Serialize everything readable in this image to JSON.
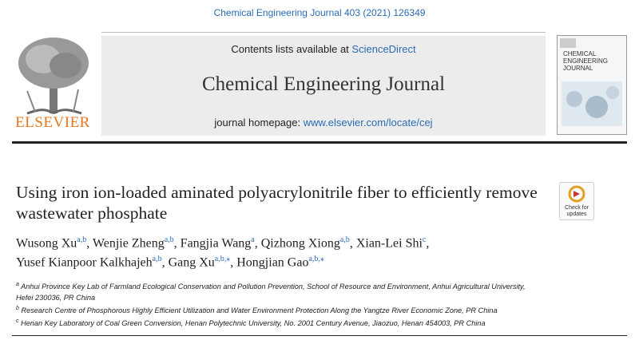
{
  "citation": "Chemical Engineering Journal 403 (2021) 126349",
  "masthead": {
    "contents_prefix": "Contents lists available at",
    "contents_link": "ScienceDirect",
    "journal": "Chemical Engineering Journal",
    "homepage_prefix": "journal homepage:",
    "homepage_link": "www.elsevier.com/locate/cej",
    "publisher": "ELSEVIER",
    "cover_title": [
      "CHEMICAL",
      "ENGINEERING",
      "JOURNAL"
    ]
  },
  "check_updates": "Check for updates",
  "article": {
    "title": "Using iron ion-loaded aminated polyacrylonitrile fiber to efficiently remove wastewater phosphate",
    "author_separator": ",",
    "author_lines": [
      [
        {
          "name": "Wusong Xu",
          "affil": "a,b"
        },
        {
          "name": "Wenjie Zheng",
          "affil": "a,b"
        },
        {
          "name": "Fangjia Wang",
          "affil": "a"
        },
        {
          "name": "Qizhong Xiong",
          "affil": "a,b"
        },
        {
          "name": "Xian-Lei Shi",
          "affil": "c"
        }
      ],
      [
        {
          "name": "Yusef Kianpoor Kalkhajeh",
          "affil": "a,b"
        },
        {
          "name": "Gang Xu",
          "affil": "a,b,⁎"
        },
        {
          "name": "Hongjian Gao",
          "affil": "a,b,⁎"
        }
      ]
    ],
    "affiliations": [
      {
        "mark": "a",
        "text": "Anhui Province Key Lab of Farmland Ecological Conservation and Pollution Prevention, School of Resource and Environment, Anhui Agricultural University, Hefei 230036, PR China"
      },
      {
        "mark": "b",
        "text": "Research Centre of Phosphorous Highly Efficient Utilization and Water Environment Protection Along the Yangtze River Economic Zone, PR China"
      },
      {
        "mark": "c",
        "text": "Henan Key Laboratory of Coal Green Conversion, Henan Polytechnic University, No. 2001 Century Avenue, Jiaozuo, Henan 454003, PR China"
      }
    ]
  }
}
